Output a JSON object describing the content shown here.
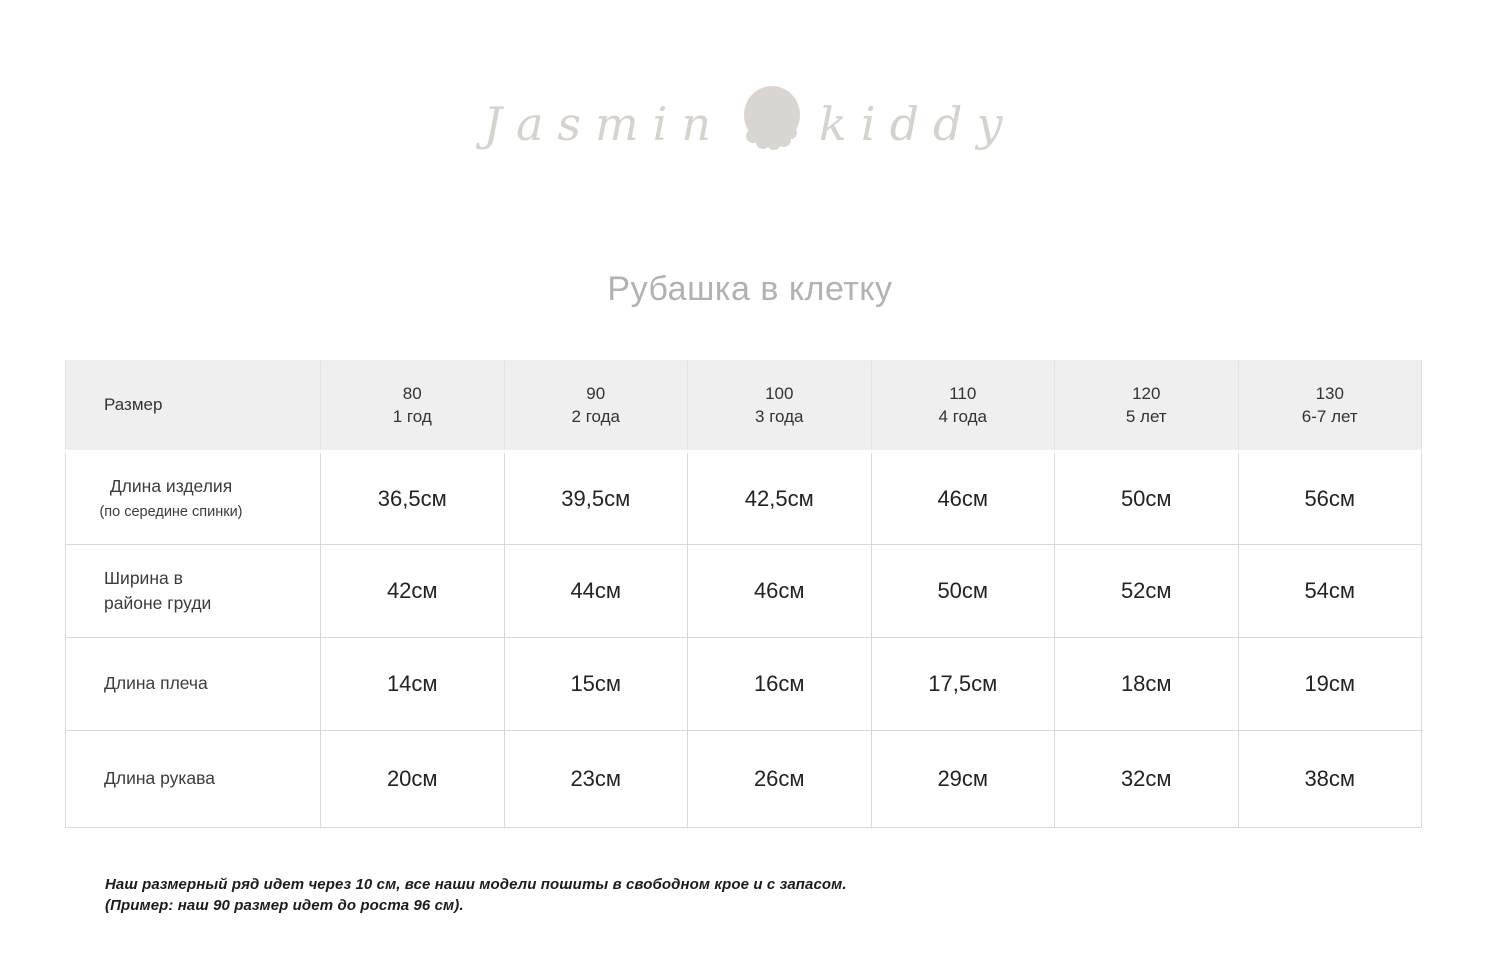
{
  "brand": {
    "name_left": "Jasmin",
    "name_right": "kiddy",
    "shell_color": "#d9d5d0",
    "text_color": "#d6d2cc"
  },
  "title": "Рубашка в клетку",
  "size_table": {
    "corner_label": "Размер",
    "columns": [
      {
        "size": "80",
        "age": "1 год"
      },
      {
        "size": "90",
        "age": "2 года"
      },
      {
        "size": "100",
        "age": "3 года"
      },
      {
        "size": "110",
        "age": "4 года"
      },
      {
        "size": "120",
        "age": "5 лет"
      },
      {
        "size": "130",
        "age": "6-7 лет"
      }
    ],
    "rows": [
      {
        "label": "Длина изделия",
        "sublabel": "(по середине спинки)",
        "centered": true,
        "values": [
          "36,5см",
          "39,5см",
          "42,5см",
          "46см",
          "50см",
          "56см"
        ]
      },
      {
        "label": "Ширина в",
        "label2": "районе груди",
        "centered": false,
        "values": [
          "42см",
          "44см",
          "46см",
          "50см",
          "52см",
          "54см"
        ]
      },
      {
        "label": "Длина плеча",
        "centered": false,
        "values": [
          "14см",
          "15см",
          "16см",
          "17,5см",
          "18см",
          "19см"
        ]
      },
      {
        "label": "Длина рукава",
        "centered": false,
        "values": [
          "20см",
          "23см",
          "26см",
          "29см",
          "32см",
          "38см"
        ]
      }
    ]
  },
  "footnote": {
    "line1": "Наш размерный ряд идет через 10 см, все наши модели пошиты в свободном крое и с запасом.",
    "line2": "(Пример: наш 90 размер идет до роста 96 см)."
  },
  "colors": {
    "header_bg": "#efefef",
    "cell_border": "#d9d9d9",
    "title_text": "#b2b2b2",
    "value_text": "#232323",
    "label_text": "#3c3c3c",
    "note_text": "#1c1c1c"
  }
}
